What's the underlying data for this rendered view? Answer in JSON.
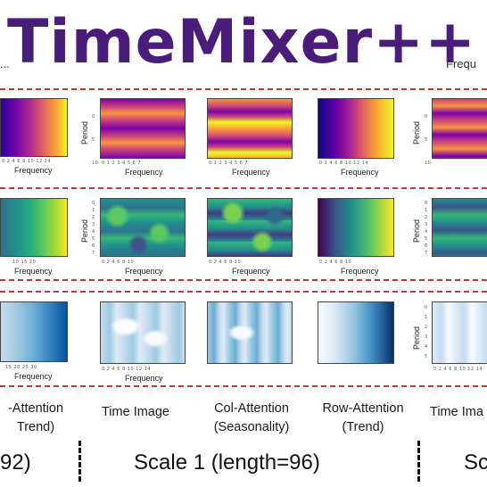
{
  "title": "TimeMixer++",
  "fragments": [
    "Frequ",
    "..."
  ],
  "axis": {
    "frequency": "Frequency",
    "period": "Period"
  },
  "ticks": {
    "row1_x": "0 2 4 6 8 10 12 14",
    "row1_x_short": "0 1 2 3 4 5 6 7",
    "row1_y": "0 5 10",
    "row2_x": "10 15 20",
    "row2_x_short": "0 2 4 6 8 10",
    "row2_y": "0 1 2 3 4 5 6 7",
    "row3_x": "15 20 25 30",
    "row3_x_short": "0 2 4 6 8 10 12 14",
    "row3_y": "0 1 2 3 4 5"
  },
  "labels": [
    {
      "line1": "-Attention",
      "line2": "Trend)"
    },
    {
      "line1": "Time Image",
      "line2": ""
    },
    {
      "line1": "Col-Attention",
      "line2": "(Seasonality)"
    },
    {
      "line1": "Row-Attention",
      "line2": "(Trend)"
    },
    {
      "line1": "Time Ima",
      "line2": ""
    }
  ],
  "scales": {
    "left": "92)",
    "middle": "Scale 1 (length=96)",
    "right": "Sc"
  },
  "colors": {
    "title": "#4b1d7a",
    "divider": "#c0392b"
  }
}
